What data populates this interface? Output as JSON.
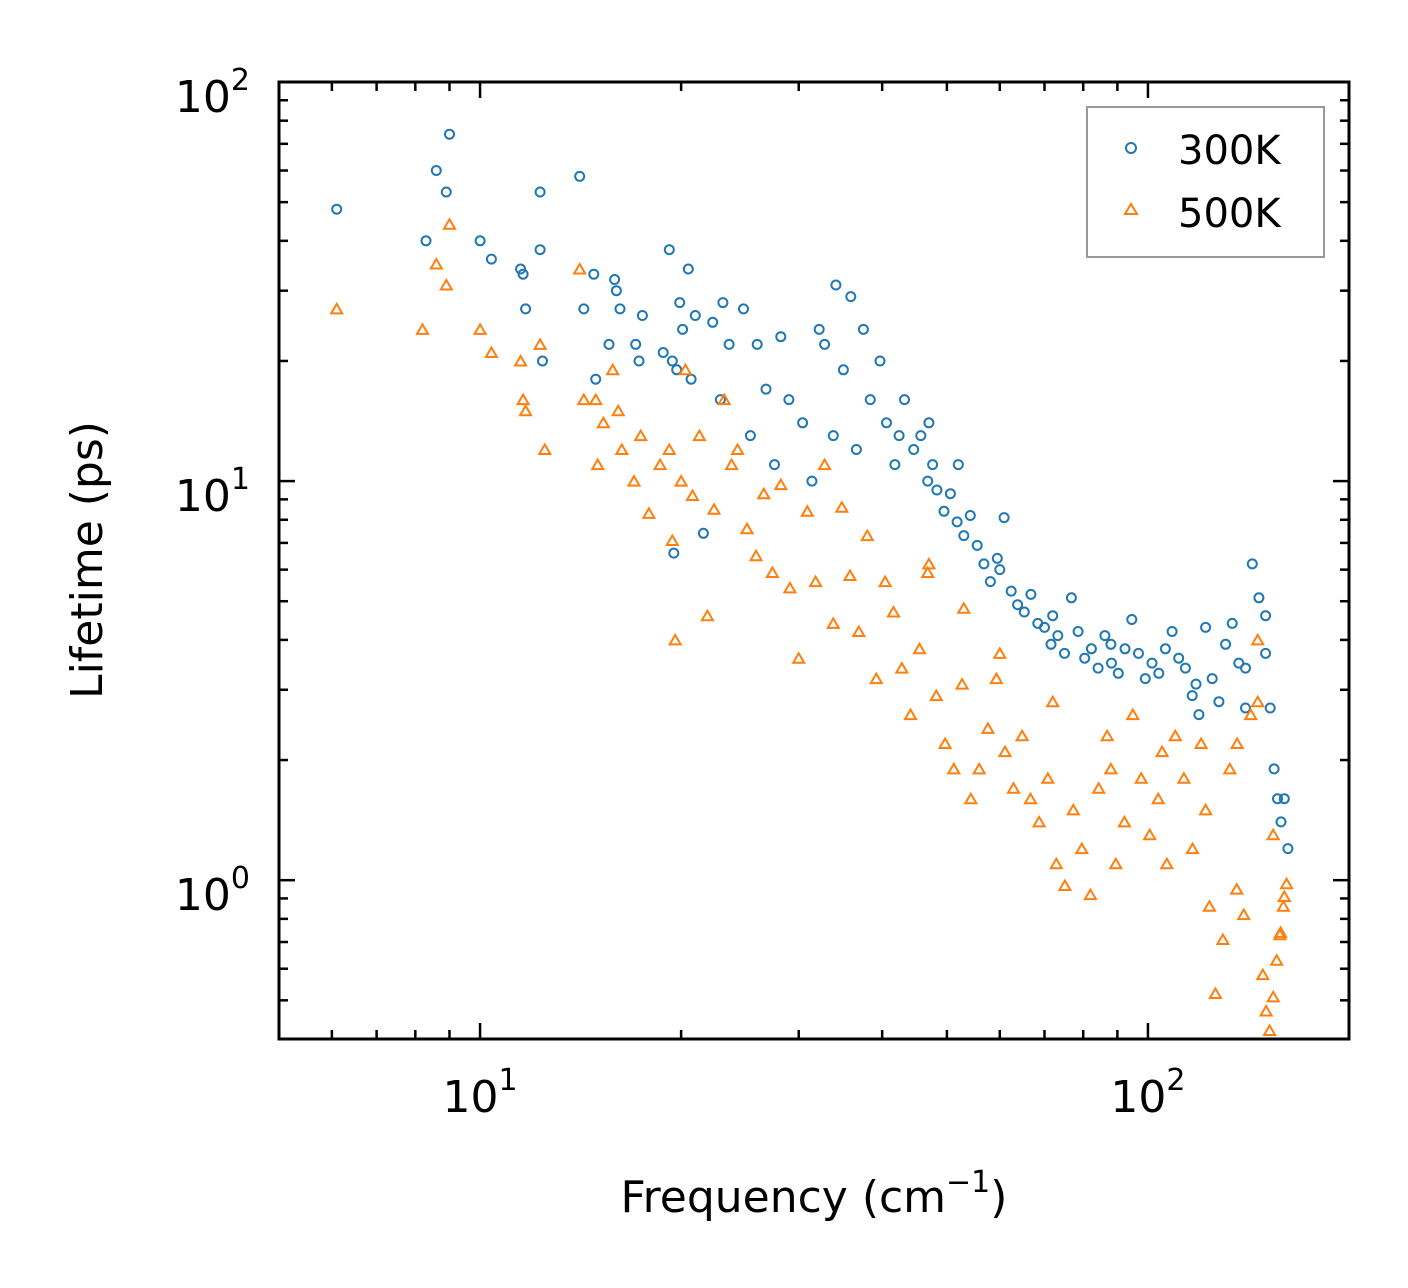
{
  "chart_data": {
    "type": "scatter",
    "title": "",
    "xlabel": "Frequency (cm",
    "xlabel_sup": "−1",
    "xlabel_end": ")",
    "ylabel": "Lifetime (ps)",
    "xscale": "log",
    "yscale": "log",
    "xlim": [
      5,
      200
    ],
    "ylim": [
      0.4,
      100
    ],
    "x_ticks": [
      {
        "base": "10",
        "exp": "1",
        "value": 10
      },
      {
        "base": "10",
        "exp": "2",
        "value": 100
      }
    ],
    "y_ticks": [
      {
        "base": "10",
        "exp": "0",
        "value": 1
      },
      {
        "base": "10",
        "exp": "1",
        "value": 10
      },
      {
        "base": "10",
        "exp": "2",
        "value": 100
      }
    ],
    "legend_position": "top-right",
    "series": [
      {
        "name": "300K",
        "marker": "circle",
        "color": "#1f77b4",
        "points": [
          [
            6.1,
            48
          ],
          [
            8.3,
            40
          ],
          [
            8.6,
            60
          ],
          [
            8.9,
            53
          ],
          [
            9.0,
            74
          ],
          [
            10.0,
            40
          ],
          [
            10.4,
            36
          ],
          [
            11.5,
            34
          ],
          [
            11.6,
            33
          ],
          [
            11.7,
            27
          ],
          [
            12.3,
            53
          ],
          [
            12.3,
            38
          ],
          [
            12.4,
            20
          ],
          [
            14.1,
            58
          ],
          [
            14.3,
            27
          ],
          [
            14.8,
            33
          ],
          [
            14.9,
            18
          ],
          [
            15.6,
            22
          ],
          [
            15.9,
            32
          ],
          [
            16.0,
            30
          ],
          [
            16.2,
            27
          ],
          [
            17.1,
            22
          ],
          [
            17.3,
            20
          ],
          [
            17.5,
            26
          ],
          [
            18.8,
            21
          ],
          [
            19.2,
            38
          ],
          [
            19.4,
            20
          ],
          [
            19.5,
            6.6
          ],
          [
            19.7,
            19
          ],
          [
            19.9,
            28
          ],
          [
            20.1,
            24
          ],
          [
            20.5,
            34
          ],
          [
            20.7,
            18
          ],
          [
            21.0,
            26
          ],
          [
            21.6,
            7.4
          ],
          [
            22.3,
            25
          ],
          [
            22.9,
            16
          ],
          [
            23.1,
            28
          ],
          [
            23.6,
            22
          ],
          [
            24.8,
            27
          ],
          [
            25.4,
            13
          ],
          [
            26.0,
            22
          ],
          [
            26.8,
            17
          ],
          [
            27.6,
            11
          ],
          [
            28.2,
            23
          ],
          [
            29.0,
            16
          ],
          [
            30.4,
            14
          ],
          [
            31.4,
            10
          ],
          [
            32.2,
            24
          ],
          [
            32.8,
            22
          ],
          [
            33.8,
            13
          ],
          [
            34.1,
            31
          ],
          [
            35.0,
            19
          ],
          [
            35.9,
            29
          ],
          [
            36.6,
            12
          ],
          [
            37.5,
            24
          ],
          [
            38.4,
            16
          ],
          [
            39.7,
            20
          ],
          [
            40.6,
            14
          ],
          [
            41.8,
            11
          ],
          [
            42.4,
            13
          ],
          [
            43.2,
            16
          ],
          [
            44.6,
            12
          ],
          [
            45.7,
            13
          ],
          [
            46.8,
            10
          ],
          [
            47.6,
            11
          ],
          [
            48.3,
            9.5
          ],
          [
            49.5,
            8.4
          ],
          [
            50.6,
            9.3
          ],
          [
            51.8,
            7.9
          ],
          [
            53.0,
            7.3
          ],
          [
            54.2,
            8.2
          ],
          [
            55.5,
            6.9
          ],
          [
            56.8,
            6.2
          ],
          [
            58.1,
            5.6
          ],
          [
            59.5,
            6.4
          ],
          [
            60.9,
            8.1
          ],
          [
            62.4,
            5.3
          ],
          [
            63.8,
            4.9
          ],
          [
            65.3,
            4.7
          ],
          [
            66.8,
            5.2
          ],
          [
            68.4,
            4.4
          ],
          [
            70.0,
            4.3
          ],
          [
            71.6,
            3.9
          ],
          [
            73.3,
            4.1
          ],
          [
            75.0,
            3.7
          ],
          [
            76.8,
            5.1
          ],
          [
            78.6,
            4.2
          ],
          [
            80.4,
            3.6
          ],
          [
            82.3,
            3.8
          ],
          [
            84.2,
            3.4
          ],
          [
            86.2,
            4.1
          ],
          [
            88.2,
            3.5
          ],
          [
            90.3,
            3.3
          ],
          [
            92.4,
            3.8
          ],
          [
            94.6,
            4.5
          ],
          [
            96.8,
            3.7
          ],
          [
            99.1,
            3.2
          ],
          [
            101.4,
            3.5
          ],
          [
            103.8,
            3.3
          ],
          [
            106.2,
            3.8
          ],
          [
            108.7,
            4.2
          ],
          [
            111.2,
            3.6
          ],
          [
            113.8,
            3.4
          ],
          [
            116.5,
            2.9
          ],
          [
            119.2,
            2.6
          ],
          [
            122.0,
            4.3
          ],
          [
            124.8,
            3.2
          ],
          [
            127.7,
            2.8
          ],
          [
            130.7,
            3.9
          ],
          [
            133.7,
            4.4
          ],
          [
            136.8,
            3.5
          ],
          [
            140.0,
            2.7
          ],
          [
            143.3,
            6.2
          ],
          [
            146.6,
            5.1
          ],
          [
            150.0,
            3.7
          ],
          [
            152.4,
            2.7
          ],
          [
            154.5,
            1.9
          ],
          [
            156.3,
            1.6
          ],
          [
            158.2,
            1.4
          ],
          [
            160.0,
            1.6
          ],
          [
            162.0,
            1.2
          ],
          [
            47.0,
            14
          ],
          [
            52.0,
            11
          ],
          [
            60.0,
            6.0
          ],
          [
            72.0,
            4.6
          ],
          [
            88.0,
            3.9
          ],
          [
            118.0,
            3.1
          ],
          [
            140.0,
            3.4
          ],
          [
            150.0,
            4.6
          ]
        ]
      },
      {
        "name": "500K",
        "marker": "triangle",
        "color": "#ff7f0e",
        "points": [
          [
            6.1,
            27
          ],
          [
            8.2,
            24
          ],
          [
            8.6,
            35
          ],
          [
            8.9,
            31
          ],
          [
            9.0,
            44
          ],
          [
            10.0,
            24
          ],
          [
            10.4,
            21
          ],
          [
            11.5,
            20
          ],
          [
            11.6,
            16
          ],
          [
            11.7,
            15
          ],
          [
            12.3,
            22
          ],
          [
            12.5,
            12
          ],
          [
            14.1,
            34
          ],
          [
            14.3,
            16
          ],
          [
            14.9,
            16
          ],
          [
            15.0,
            11
          ],
          [
            15.3,
            14
          ],
          [
            15.8,
            19
          ],
          [
            16.1,
            15
          ],
          [
            16.3,
            12
          ],
          [
            17.0,
            10
          ],
          [
            17.4,
            13
          ],
          [
            17.9,
            8.3
          ],
          [
            18.6,
            11
          ],
          [
            19.2,
            12
          ],
          [
            19.4,
            7.1
          ],
          [
            19.6,
            4.0
          ],
          [
            20.0,
            10
          ],
          [
            20.3,
            19
          ],
          [
            20.8,
            9.2
          ],
          [
            21.3,
            13
          ],
          [
            21.9,
            4.6
          ],
          [
            22.4,
            8.5
          ],
          [
            23.2,
            16
          ],
          [
            23.8,
            11
          ],
          [
            24.3,
            12
          ],
          [
            25.1,
            7.6
          ],
          [
            25.9,
            6.5
          ],
          [
            26.6,
            9.3
          ],
          [
            27.4,
            5.9
          ],
          [
            28.2,
            9.8
          ],
          [
            29.1,
            5.4
          ],
          [
            30.0,
            3.6
          ],
          [
            30.9,
            8.4
          ],
          [
            31.8,
            5.6
          ],
          [
            32.8,
            11
          ],
          [
            33.8,
            4.4
          ],
          [
            34.8,
            8.6
          ],
          [
            35.8,
            5.8
          ],
          [
            36.9,
            4.2
          ],
          [
            38.0,
            7.3
          ],
          [
            39.2,
            3.2
          ],
          [
            40.4,
            5.6
          ],
          [
            41.6,
            4.7
          ],
          [
            42.8,
            3.4
          ],
          [
            44.1,
            2.6
          ],
          [
            45.5,
            3.8
          ],
          [
            46.8,
            5.9
          ],
          [
            48.2,
            2.9
          ],
          [
            49.7,
            2.2
          ],
          [
            51.2,
            1.9
          ],
          [
            52.7,
            3.1
          ],
          [
            54.3,
            1.6
          ],
          [
            55.9,
            1.9
          ],
          [
            57.6,
            2.4
          ],
          [
            59.3,
            3.2
          ],
          [
            61.1,
            2.1
          ],
          [
            62.9,
            1.7
          ],
          [
            64.8,
            2.3
          ],
          [
            66.7,
            1.6
          ],
          [
            68.7,
            1.4
          ],
          [
            70.8,
            1.8
          ],
          [
            72.9,
            1.1
          ],
          [
            75.1,
            0.97
          ],
          [
            77.3,
            1.5
          ],
          [
            79.6,
            1.2
          ],
          [
            82.0,
            0.92
          ],
          [
            84.4,
            1.7
          ],
          [
            86.9,
            2.3
          ],
          [
            89.5,
            1.1
          ],
          [
            92.2,
            1.4
          ],
          [
            94.9,
            2.6
          ],
          [
            97.7,
            1.8
          ],
          [
            100.6,
            1.3
          ],
          [
            103.6,
            1.6
          ],
          [
            106.7,
            1.1
          ],
          [
            109.9,
            2.3
          ],
          [
            113.2,
            1.8
          ],
          [
            116.6,
            1.2
          ],
          [
            120.1,
            2.2
          ],
          [
            123.6,
            0.86
          ],
          [
            126.2,
            0.52
          ],
          [
            129.5,
            0.71
          ],
          [
            132.6,
            1.9
          ],
          [
            135.8,
            0.95
          ],
          [
            139.1,
            0.82
          ],
          [
            142.5,
            2.6
          ],
          [
            146.0,
            4.0
          ],
          [
            148.6,
            0.58
          ],
          [
            150.3,
            0.47
          ],
          [
            152.1,
            0.42
          ],
          [
            154.0,
            0.51
          ],
          [
            155.8,
            0.63
          ],
          [
            157.6,
            0.73
          ],
          [
            159.5,
            0.86
          ],
          [
            161.3,
            0.98
          ],
          [
            47.0,
            6.2
          ],
          [
            53.0,
            4.8
          ],
          [
            60.0,
            3.7
          ],
          [
            72.0,
            2.8
          ],
          [
            88.0,
            1.9
          ],
          [
            105.0,
            2.1
          ],
          [
            122.0,
            1.5
          ],
          [
            136.0,
            2.2
          ],
          [
            146.0,
            2.8
          ],
          [
            154.0,
            1.3
          ],
          [
            158.0,
            0.74
          ],
          [
            160.0,
            0.91
          ]
        ]
      }
    ]
  }
}
